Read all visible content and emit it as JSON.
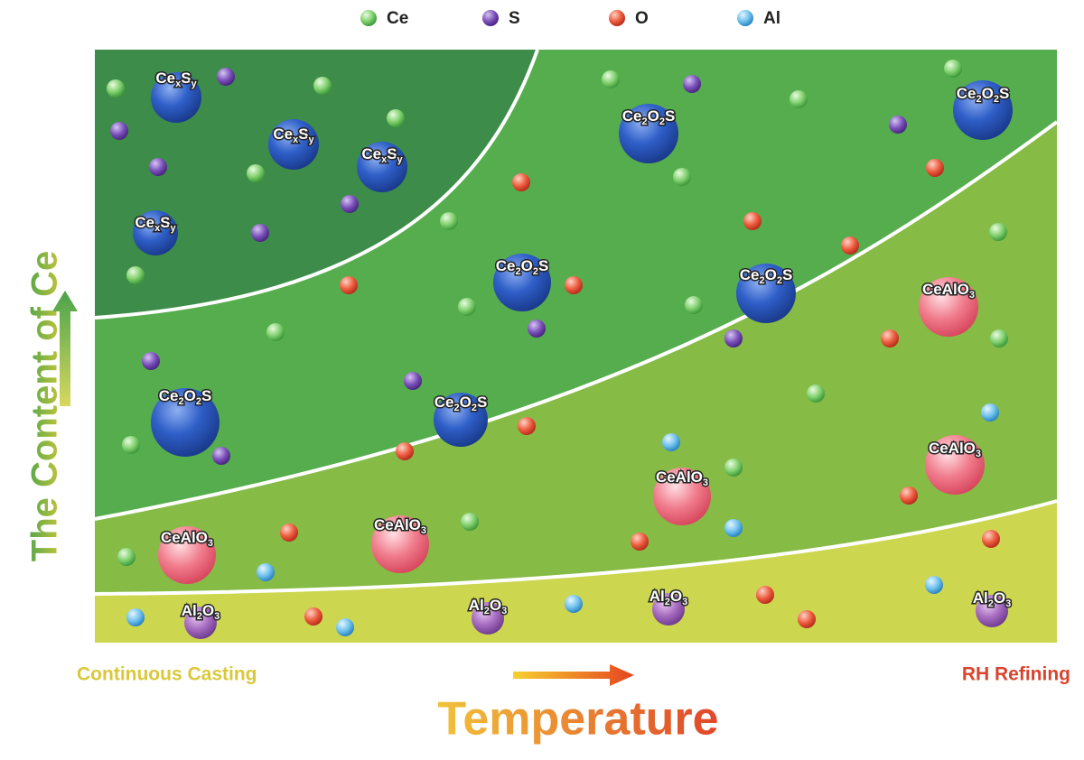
{
  "legend": [
    "Ce",
    "S",
    "O",
    "Al"
  ],
  "y_axis_label": "The Content of Ce",
  "x_axis_label": "Temperature",
  "x_axis_start": "Continuous Casting",
  "x_axis_end": "RH Refining",
  "inclusions": [
    {
      "label": [
        "Ce",
        "x",
        "S",
        "y"
      ]
    },
    {
      "label": [
        "Ce",
        "x",
        "S",
        "y"
      ]
    },
    {
      "label": [
        "Ce",
        "x",
        "S",
        "y"
      ]
    },
    {
      "label": [
        "Ce",
        "x",
        "S",
        "y"
      ]
    },
    {
      "label": [
        "Ce",
        "2",
        "O",
        "2",
        "S"
      ]
    },
    {
      "label": [
        "Ce",
        "2",
        "O",
        "2",
        "S"
      ]
    },
    {
      "label": [
        "Ce",
        "2",
        "O",
        "2",
        "S"
      ]
    },
    {
      "label": [
        "Ce",
        "2",
        "O",
        "2",
        "S"
      ]
    },
    {
      "label": [
        "Ce",
        "2",
        "O",
        "2",
        "S"
      ]
    },
    {
      "label": [
        "Ce",
        "2",
        "O",
        "2",
        "S"
      ]
    },
    {
      "label": [
        "CeAlO",
        "3"
      ]
    },
    {
      "label": [
        "CeAlO",
        "3"
      ]
    },
    {
      "label": [
        "CeAlO",
        "3"
      ]
    },
    {
      "label": [
        "CeAlO",
        "3"
      ]
    },
    {
      "label": [
        "CeAlO",
        "3"
      ]
    },
    {
      "label": [
        "Al",
        "2",
        "O",
        "3"
      ]
    },
    {
      "label": [
        "Al",
        "2",
        "O",
        "3"
      ]
    },
    {
      "label": [
        "Al",
        "2",
        "O",
        "3"
      ]
    },
    {
      "label": [
        "Al",
        "2",
        "O",
        "3"
      ]
    }
  ]
}
